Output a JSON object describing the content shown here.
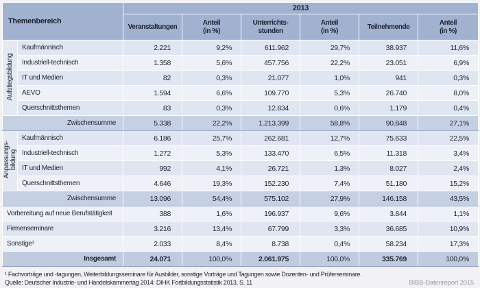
{
  "table": {
    "topic_header": "Themenbereich",
    "year_header": "2013",
    "columns": [
      {
        "top": "Veranstaltungen",
        "bottom": ""
      },
      {
        "top": "Anteil",
        "bottom": "(in %)"
      },
      {
        "top": "Unterrichts-",
        "bottom": "stunden"
      },
      {
        "top": "Anteil",
        "bottom": "(in %)"
      },
      {
        "top": "Teilnehmende",
        "bottom": ""
      },
      {
        "top": "Anteil",
        "bottom": "(in %)"
      }
    ],
    "groups": [
      {
        "name": "Aufstiegsbildung",
        "name_lines": [
          "Aufstiegsbildung"
        ],
        "rows": [
          {
            "label": "Kaufmännisch",
            "values": [
              "2.221",
              "9,2%",
              "611.962",
              "29,7%",
              "38.937",
              "11,6%"
            ]
          },
          {
            "label": "Industriell-technisch",
            "values": [
              "1.358",
              "5,6%",
              "457.756",
              "22,2%",
              "23.051",
              "6,9%"
            ]
          },
          {
            "label": "IT und Medien",
            "values": [
              "82",
              "0,3%",
              "21.077",
              "1,0%",
              "941",
              "0,3%"
            ]
          },
          {
            "label": "AEVO",
            "values": [
              "1.594",
              "6,6%",
              "109.770",
              "5,3%",
              "26.740",
              "8,0%"
            ]
          },
          {
            "label": "Querschnittsthemen",
            "values": [
              "83",
              "0,3%",
              "12.834",
              "0,6%",
              "1.179",
              "0,4%"
            ]
          }
        ],
        "subtotal": {
          "label": "Zwischensumme",
          "values": [
            "5.338",
            "22,2%",
            "1.213.399",
            "58,8%",
            "90.848",
            "27,1%"
          ]
        }
      },
      {
        "name": "Anpassungsbildung",
        "name_lines": [
          "Anpassungs-",
          "bildung"
        ],
        "rows": [
          {
            "label": "Kaufmännisch",
            "values": [
              "6.186",
              "25,7%",
              "262.681",
              "12,7%",
              "75.633",
              "22,5%"
            ]
          },
          {
            "label": "Industriell-technisch",
            "values": [
              "1.272",
              "5,3%",
              "133.470",
              "6,5%",
              "11.318",
              "3,4%"
            ]
          },
          {
            "label": "IT und Medien",
            "values": [
              "992",
              "4,1%",
              "26.721",
              "1,3%",
              "8.027",
              "2,4%"
            ]
          },
          {
            "label": "Querschnittsthemen",
            "values": [
              "4.646",
              "19,3%",
              "152.230",
              "7,4%",
              "51.180",
              "15,2%"
            ]
          }
        ],
        "subtotal": {
          "label": "Zwischensumme",
          "values": [
            "13.096",
            "54,4%",
            "575.102",
            "27,9%",
            "146.158",
            "43,5%"
          ]
        }
      }
    ],
    "extra_rows": [
      {
        "label": "Vorbereitung auf neue Berufstätigkeit",
        "values": [
          "388",
          "1,6%",
          "196.937",
          "9,6%",
          "3.844",
          "1,1%"
        ]
      },
      {
        "label": "Firmenseminare",
        "values": [
          "3.216",
          "13,4%",
          "67.799",
          "3,3%",
          "36.685",
          "10,9%"
        ]
      },
      {
        "label": "Sonstige¹",
        "values": [
          "2.033",
          "8,4%",
          "8.738",
          "0,4%",
          "58.234",
          "17,3%"
        ]
      }
    ],
    "total": {
      "label": "Insgesamt",
      "values": [
        "24.071",
        "100,0%",
        "2.061.975",
        "100,0%",
        "335.769",
        "100,0%"
      ]
    }
  },
  "footer": {
    "footnote": "¹ Fachvorträge und -tagungen, Weiterbildungsseminare für Ausbilder, sonstige Vorträge und Tagungen sowie Dozenten- und Prüferseminare.",
    "source": "Quelle: Deutscher Industrie- und Handelskammertag 2014: DIHK Fortbildungsstatistik 2013, S. 11",
    "report_label": "BIBB-Datenreport 2015"
  },
  "colors": {
    "header_bg": "#a1b1d0",
    "row_tint": "#dfe5f1",
    "row_light": "#eef1f8",
    "subtotal_bg": "#c6d0e3",
    "total_bg": "#c0cbe0",
    "group_cell_bg": "#e4e9f3",
    "text": "#1d2230",
    "brand_text": "#9c9ca4"
  }
}
